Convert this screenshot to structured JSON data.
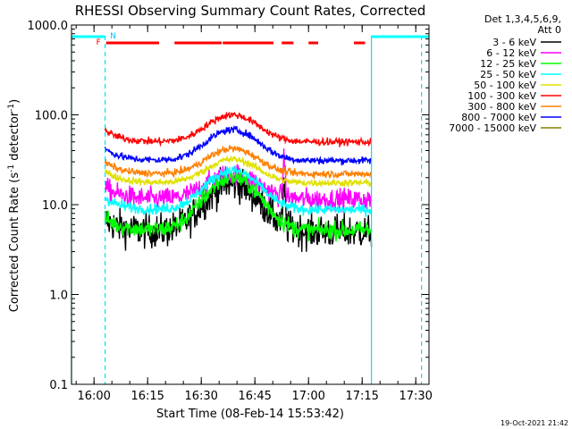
{
  "chart_data": {
    "type": "line",
    "title": "RHESSI Observing Summary Count Rates, Corrected",
    "xlabel": "Start Time (08-Feb-14 15:53:42)",
    "ylabel_parts": [
      "Corrected Count Rate (s",
      "-1",
      " detector",
      "-1",
      ")"
    ],
    "yscale": "log",
    "ylim": [
      0.1,
      1000
    ],
    "xlim_minutes": [
      0,
      100
    ],
    "x_unit": "minutes after 15:53:42",
    "y_ticks": [
      {
        "value": 0.1,
        "label": "0.1"
      },
      {
        "value": 1,
        "label": "1.0"
      },
      {
        "value": 10,
        "label": "10.0"
      },
      {
        "value": 100,
        "label": "100.0"
      },
      {
        "value": 1000,
        "label": "1000.0"
      }
    ],
    "x_ticks": [
      {
        "minute": 6.3,
        "label": "16:00"
      },
      {
        "minute": 21.3,
        "label": "16:15"
      },
      {
        "minute": 36.3,
        "label": "16:30"
      },
      {
        "minute": 51.3,
        "label": "16:45"
      },
      {
        "minute": 66.3,
        "label": "17:00"
      },
      {
        "minute": 81.3,
        "label": "17:15"
      },
      {
        "minute": 96.3,
        "label": "17:30"
      }
    ],
    "legend_header": [
      "Det 1,3,4,5,6,9,",
      "Att 0"
    ],
    "series": [
      {
        "name": "3 - 6 keV",
        "color": "#000000",
        "base": 5.0,
        "peak": 17,
        "sigma": 0.19
      },
      {
        "name": "6 - 12 keV",
        "color": "#ff00ff",
        "base": 11.5,
        "peak": 22,
        "sigma": 0.12
      },
      {
        "name": "12 - 25 keV",
        "color": "#00ff00",
        "base": 5.2,
        "peak": 20,
        "sigma": 0.1
      },
      {
        "name": "25 - 50 keV",
        "color": "#00ffff",
        "base": 8.8,
        "peak": 24,
        "sigma": 0.06
      },
      {
        "name": "50 - 100 keV",
        "color": "#e0e000",
        "base": 17.5,
        "peak": 32,
        "sigma": 0.04
      },
      {
        "name": "100 - 300 keV",
        "color": "#ff0000",
        "base": 50,
        "peak": 100,
        "sigma": 0.04
      },
      {
        "name": "300 - 800 keV",
        "color": "#ff8000",
        "base": 22,
        "peak": 42,
        "sigma": 0.04
      },
      {
        "name": "800 - 7000 keV",
        "color": "#0000ff",
        "base": 31,
        "peak": 68,
        "sigma": 0.04
      },
      {
        "name": "7000 - 15000 keV",
        "color": "#808000",
        "base": null,
        "peak": null,
        "sigma": 0
      }
    ],
    "flags": {
      "F": "F",
      "N": "N"
    },
    "night_intervals_minutes": [
      [
        0,
        9.4
      ],
      [
        83.9,
        100
      ]
    ],
    "saa_vlines_minutes": [
      0,
      9.4,
      83.9,
      97.9
    ],
    "flare_bar_segments_minutes": [
      [
        9.7,
        24.5
      ],
      [
        28.8,
        42.0
      ],
      [
        42.3,
        56.5
      ],
      [
        58.8,
        62.1
      ],
      [
        66.3,
        69.0
      ],
      [
        79.0,
        82.1
      ]
    ]
  },
  "footer": {
    "timestamp": "19-Oct-2021 21:42"
  }
}
